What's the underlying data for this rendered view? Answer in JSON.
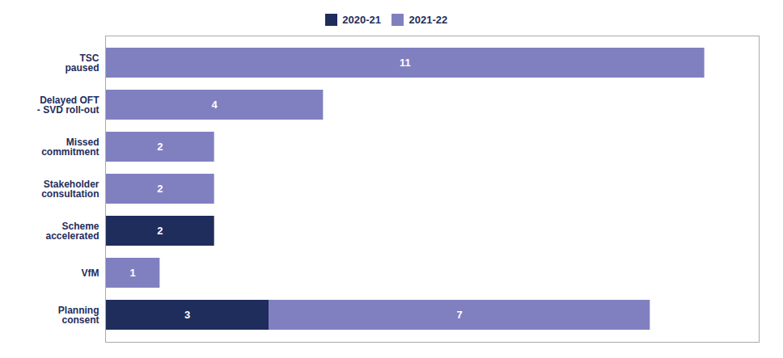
{
  "chart_data": {
    "type": "bar",
    "orientation": "horizontal",
    "stacked": true,
    "categories": [
      "TSC\npaused",
      "Delayed OFT\n- SVD roll-out",
      "Missed\ncommitment",
      "Stakeholder\nconsultation",
      "Scheme\naccelerated",
      "VfM",
      "Planning\nconsent"
    ],
    "series": [
      {
        "name": "2020-21",
        "color": "#1f2d5c",
        "values": [
          0,
          0,
          0,
          0,
          2,
          0,
          3
        ]
      },
      {
        "name": "2021-22",
        "color": "#8080c0",
        "values": [
          11,
          4,
          2,
          2,
          0,
          1,
          7
        ]
      }
    ],
    "xlim": [
      0,
      12
    ],
    "data_labels": true,
    "tick_labels": "y",
    "legend": "top"
  }
}
